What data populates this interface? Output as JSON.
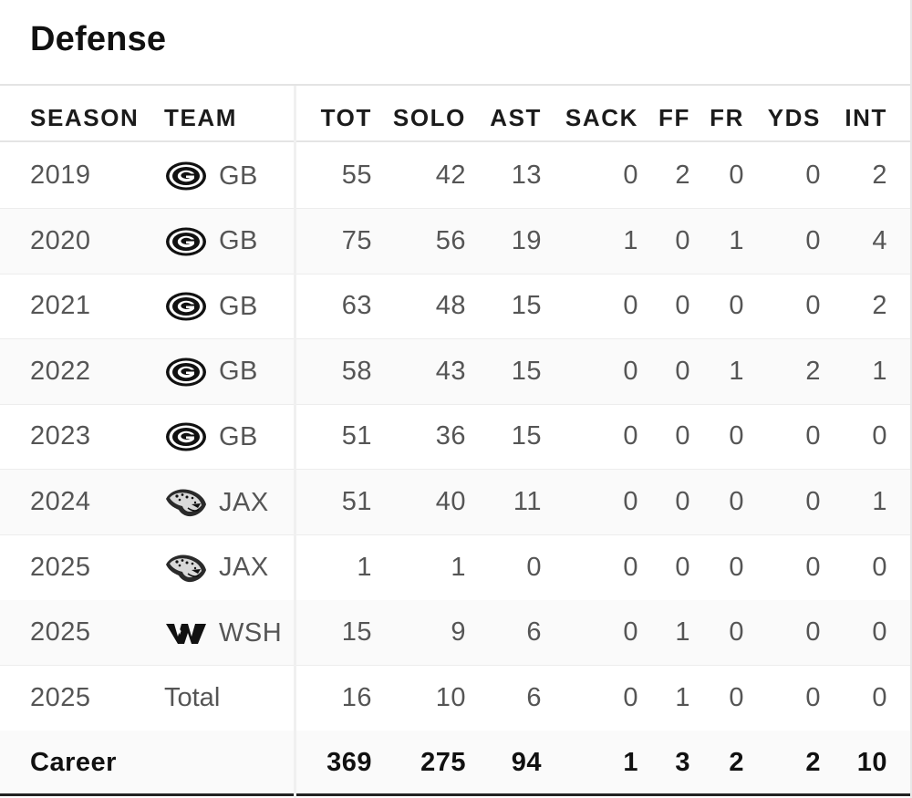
{
  "title": "Defense",
  "columns": {
    "season": "SEASON",
    "team": "TEAM",
    "tot": "TOT",
    "solo": "SOLO",
    "ast": "AST",
    "sack": "SACK",
    "ff": "FF",
    "fr": "FR",
    "yds": "YDS",
    "int": "INT"
  },
  "rows": [
    {
      "season": "2019",
      "team": "GB",
      "logo": "packers-logo-icon",
      "tot": "55",
      "solo": "42",
      "ast": "13",
      "sack": "0",
      "ff": "2",
      "fr": "0",
      "yds": "0",
      "int": "2"
    },
    {
      "season": "2020",
      "team": "GB",
      "logo": "packers-logo-icon",
      "tot": "75",
      "solo": "56",
      "ast": "19",
      "sack": "1",
      "ff": "0",
      "fr": "1",
      "yds": "0",
      "int": "4"
    },
    {
      "season": "2021",
      "team": "GB",
      "logo": "packers-logo-icon",
      "tot": "63",
      "solo": "48",
      "ast": "15",
      "sack": "0",
      "ff": "0",
      "fr": "0",
      "yds": "0",
      "int": "2"
    },
    {
      "season": "2022",
      "team": "GB",
      "logo": "packers-logo-icon",
      "tot": "58",
      "solo": "43",
      "ast": "15",
      "sack": "0",
      "ff": "0",
      "fr": "1",
      "yds": "2",
      "int": "1"
    },
    {
      "season": "2023",
      "team": "GB",
      "logo": "packers-logo-icon",
      "tot": "51",
      "solo": "36",
      "ast": "15",
      "sack": "0",
      "ff": "0",
      "fr": "0",
      "yds": "0",
      "int": "0"
    },
    {
      "season": "2024",
      "team": "JAX",
      "logo": "jaguars-logo-icon",
      "tot": "51",
      "solo": "40",
      "ast": "11",
      "sack": "0",
      "ff": "0",
      "fr": "0",
      "yds": "0",
      "int": "1"
    },
    {
      "season": "2025",
      "team": "JAX",
      "logo": "jaguars-logo-icon",
      "tot": "1",
      "solo": "1",
      "ast": "0",
      "sack": "0",
      "ff": "0",
      "fr": "0",
      "yds": "0",
      "int": "0"
    },
    {
      "season": "2025",
      "team": "WSH",
      "logo": "commanders-logo-icon",
      "tot": "15",
      "solo": "9",
      "ast": "6",
      "sack": "0",
      "ff": "1",
      "fr": "0",
      "yds": "0",
      "int": "0"
    },
    {
      "season": "2025",
      "team": "Total",
      "logo": "",
      "tot": "16",
      "solo": "10",
      "ast": "6",
      "sack": "0",
      "ff": "1",
      "fr": "0",
      "yds": "0",
      "int": "0"
    }
  ],
  "career": {
    "label": "Career",
    "tot": "369",
    "solo": "275",
    "ast": "94",
    "sack": "1",
    "ff": "3",
    "fr": "2",
    "yds": "2",
    "int": "10"
  },
  "colors": {
    "header_text": "#1b1b1b",
    "value_text": "#555555",
    "career_text": "#111111",
    "row_border": "#ededed"
  }
}
